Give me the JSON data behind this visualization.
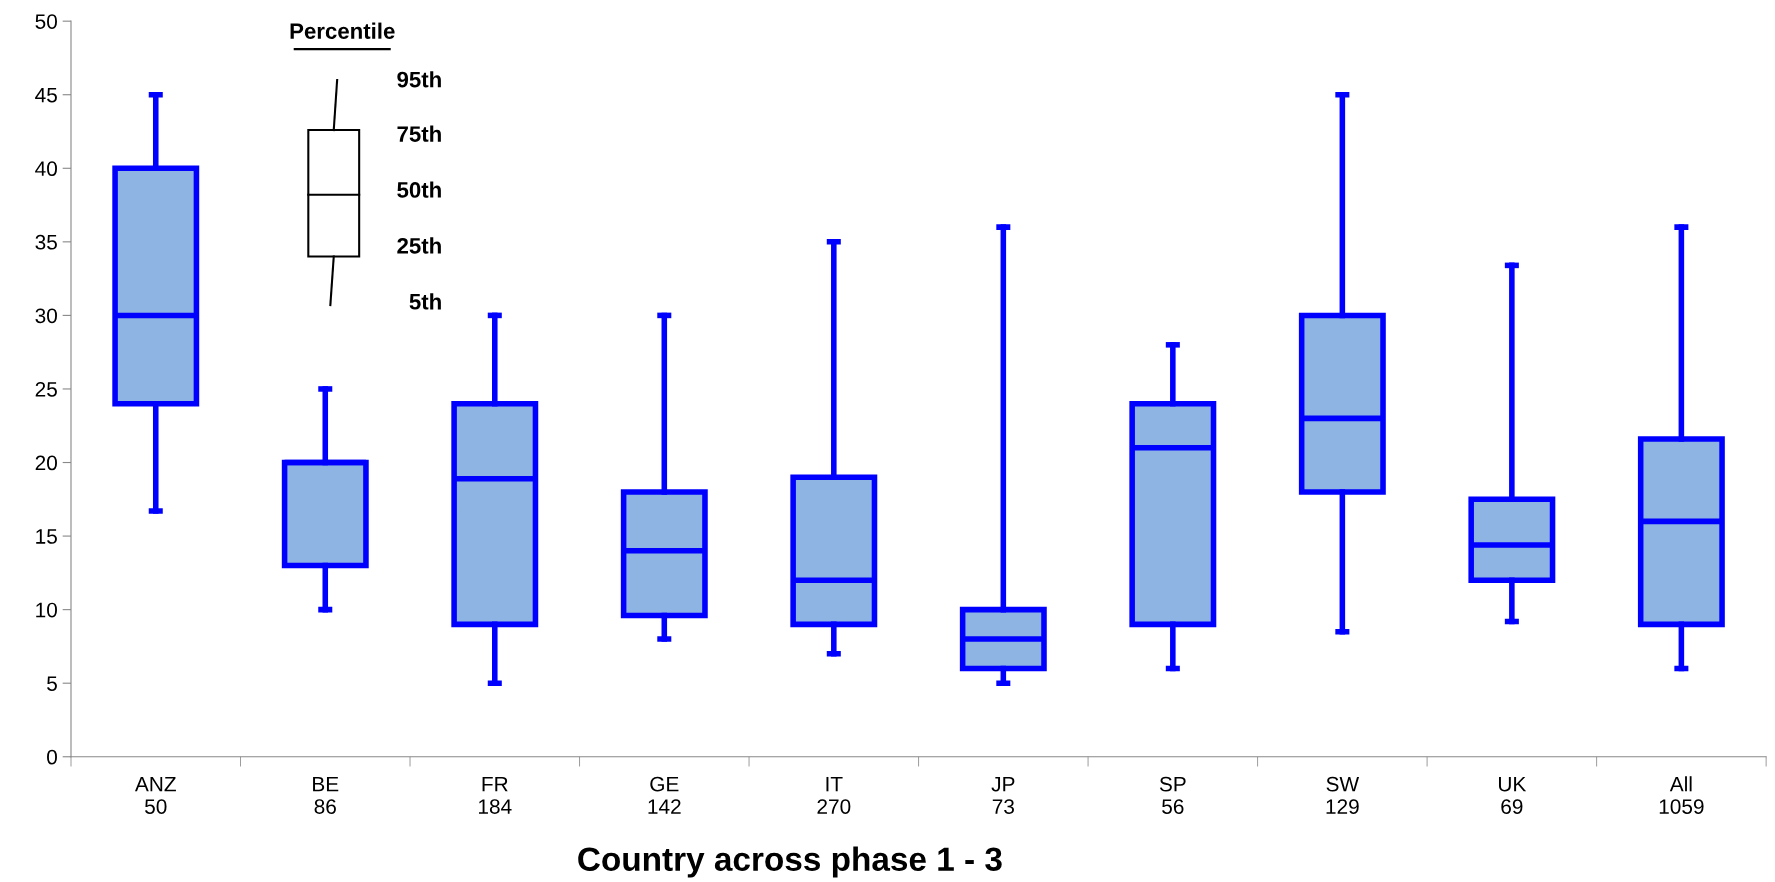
{
  "chart_data": {
    "type": "box",
    "xlabel": "Country across phase 1 - 3",
    "categories": [
      "ANZ\n50",
      "BE\n86",
      "FR\n184",
      "GE\n142",
      "IT\n270",
      "JP\n73",
      "SP\n56",
      "SW\n129",
      "UK\n69",
      "All\n1059"
    ],
    "boxes": [
      {
        "low": 16.7,
        "q1": 24,
        "median": 30,
        "q3": 40,
        "high": 45
      },
      {
        "low": 10,
        "q1": 13,
        "median": 20,
        "q3": 20,
        "high": 25
      },
      {
        "low": 5,
        "q1": 9,
        "median": 18.9,
        "q3": 24,
        "high": 30
      },
      {
        "low": 8,
        "q1": 9.6,
        "median": 14,
        "q3": 18,
        "high": 30
      },
      {
        "low": 7,
        "q1": 9,
        "median": 12,
        "q3": 19,
        "high": 35
      },
      {
        "low": 5,
        "q1": 6,
        "median": 8,
        "q3": 10,
        "high": 36
      },
      {
        "low": 6,
        "q1": 9,
        "median": 21,
        "q3": 24,
        "high": 28
      },
      {
        "low": 8.5,
        "q1": 18,
        "median": 23,
        "q3": 30,
        "high": 45
      },
      {
        "low": 9.2,
        "q1": 12,
        "median": 14.4,
        "q3": 17.5,
        "high": 33.4
      },
      {
        "low": 6,
        "q1": 9,
        "median": 16,
        "q3": 21.6,
        "high": 36
      }
    ],
    "color": "#0000ff",
    "colors": [
      "#8db4e2",
      "#8db4e2",
      "#8db4e2",
      "#8db4e2",
      "#8db4e2",
      "#8db4e2",
      "#8db4e2",
      "#8db4e2",
      "#8db4e2",
      "#8db4e2"
    ],
    "ylim": [
      0,
      50
    ],
    "yticks": [
      0,
      5,
      10,
      15,
      20,
      25,
      30,
      35,
      40,
      45,
      50
    ],
    "grid": false,
    "annotations": [
      "Percentile",
      "95th",
      "75th",
      "50th",
      "25th",
      "5th"
    ]
  }
}
